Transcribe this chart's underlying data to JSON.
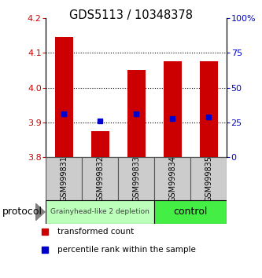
{
  "title": "GDS5113 / 10348378",
  "samples": [
    "GSM999831",
    "GSM999832",
    "GSM999833",
    "GSM999834",
    "GSM999835"
  ],
  "bar_bottoms": [
    3.8,
    3.8,
    3.8,
    3.8,
    3.8
  ],
  "bar_tops": [
    4.145,
    3.875,
    4.05,
    4.075,
    4.075
  ],
  "percentile_values": [
    3.925,
    3.905,
    3.925,
    3.91,
    3.915
  ],
  "ylim_left": [
    3.8,
    4.2
  ],
  "ylim_right": [
    0,
    100
  ],
  "yticks_left": [
    3.8,
    3.9,
    4.0,
    4.1,
    4.2
  ],
  "yticks_right": [
    0,
    25,
    50,
    75,
    100
  ],
  "ytick_labels_right": [
    "0",
    "25",
    "50",
    "75",
    "100%"
  ],
  "bar_color": "#cc0000",
  "percentile_color": "#0000cc",
  "group1_label": "Grainyhead-like 2 depletion",
  "group2_label": "control",
  "group1_color": "#bbffbb",
  "group2_color": "#44ee44",
  "protocol_label": "protocol",
  "legend_bar_label": "transformed count",
  "legend_pct_label": "percentile rank within the sample",
  "tick_color_left": "#cc0000",
  "tick_color_right": "#0000cc",
  "background_color": "#ffffff",
  "bar_width": 0.5,
  "grid_yticks": [
    3.9,
    4.0,
    4.1
  ]
}
